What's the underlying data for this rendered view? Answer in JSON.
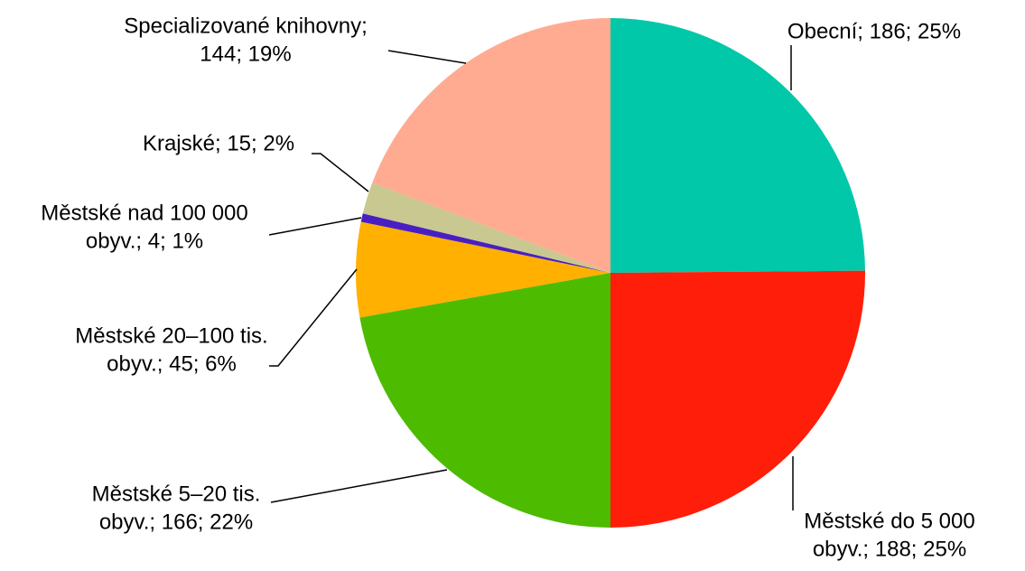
{
  "chart_data": {
    "type": "pie",
    "values": [
      186,
      188,
      166,
      45,
      4,
      15,
      144
    ],
    "value_labels": [
      [
        "Obecní; 186; 25%"
      ],
      [
        "Městské do 5 000",
        "obyv.; 188; 25%"
      ],
      [
        "Městské 5–20 tis.",
        "obyv.; 166; 22%"
      ],
      [
        "Městské 20–100 tis.",
        "obyv.; 45; 6%"
      ],
      [
        "Městské nad 100 000",
        "obyv.; 4; 1%"
      ],
      [
        "Krajské; 15; 2%"
      ],
      [
        "Specializované knihovny;",
        "144; 19%"
      ]
    ],
    "colors": [
      "#00c8a8",
      "#ff1e0a",
      "#4dbb00",
      "#ffb000",
      "#4a1fc2",
      "#c8c890",
      "#ffab92"
    ]
  }
}
